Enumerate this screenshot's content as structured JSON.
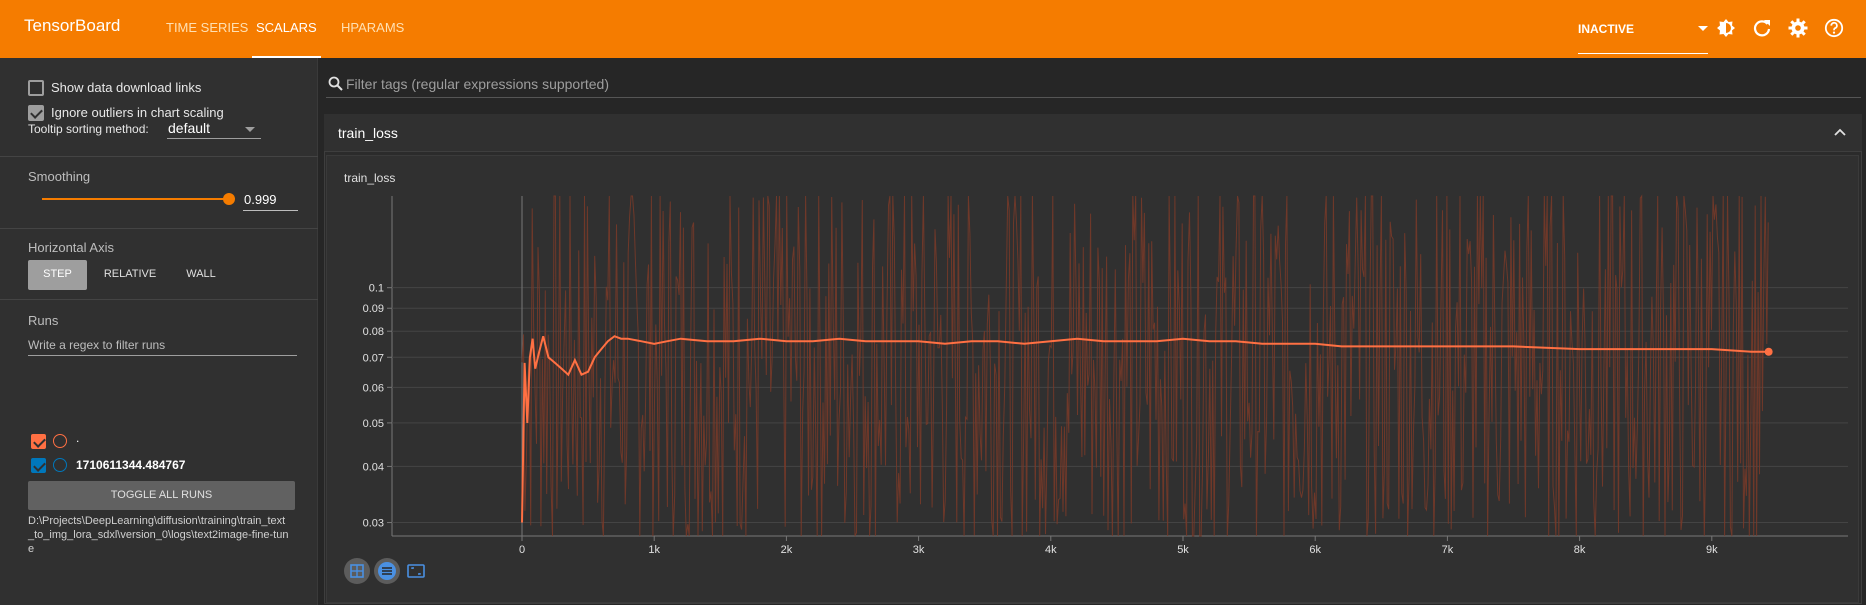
{
  "app": {
    "title": "TensorBoard",
    "tabs": [
      {
        "label": "TIME SERIES",
        "active": false
      },
      {
        "label": "SCALARS",
        "active": true
      },
      {
        "label": "HPARAMS",
        "active": false
      }
    ],
    "status_select": "INACTIVE",
    "icons": [
      "brightness-icon",
      "refresh-icon",
      "settings-icon",
      "help-icon"
    ]
  },
  "sidebar": {
    "show_download_links": {
      "label": "Show data download links",
      "checked": false
    },
    "ignore_outliers": {
      "label": "Ignore outliers in chart scaling",
      "checked": true
    },
    "tooltip_sort": {
      "label": "Tooltip sorting method:",
      "value": "default"
    },
    "smoothing": {
      "label": "Smoothing",
      "value": "0.999",
      "fraction": 0.999
    },
    "horizontal_axis": {
      "label": "Horizontal Axis",
      "options": [
        "STEP",
        "RELATIVE",
        "WALL"
      ],
      "selected": "STEP"
    },
    "runs": {
      "label": "Runs",
      "filter_placeholder": "Write a regex to filter runs",
      "items": [
        {
          "name": ".",
          "checked": true,
          "color": "#ff7043"
        },
        {
          "name": "1710611344.484767",
          "checked": true,
          "color": "#0077bb"
        }
      ],
      "toggle_label": "TOGGLE ALL RUNS",
      "logdir": "D:\\Projects\\DeepLearning\\diffusion\\training\\train_text_to_img_lora_sdxl\\version_0\\logs\\text2image-fine-tune"
    }
  },
  "main": {
    "filter_placeholder": "Filter tags (regular expressions supported)",
    "group_name": "train_loss",
    "card_title": "train_loss"
  },
  "colors": {
    "accent": "#f57c00",
    "series_smoothed": "#ff7043",
    "series_raw": "#7a3a28"
  },
  "chart_data": {
    "type": "line",
    "title": "train_loss",
    "xlabel": "",
    "ylabel": "",
    "yscale": "log",
    "xlim": [
      -1000,
      10000
    ],
    "ylim": [
      0.028,
      0.16
    ],
    "x_ticks": [
      "0",
      "1k",
      "2k",
      "3k",
      "4k",
      "5k",
      "6k",
      "7k",
      "8k",
      "9k"
    ],
    "x_tick_values": [
      0,
      1000,
      2000,
      3000,
      4000,
      5000,
      6000,
      7000,
      8000,
      9000
    ],
    "y_ticks": [
      "0.03",
      "0.04",
      "0.05",
      "0.06",
      "0.07",
      "0.08",
      "0.09",
      "0.1"
    ],
    "y_tick_values": [
      0.03,
      0.04,
      0.05,
      0.06,
      0.07,
      0.08,
      0.09,
      0.1
    ],
    "grid": true,
    "series": [
      {
        "role": "smoothed",
        "x": [
          0,
          20,
          40,
          60,
          80,
          100,
          130,
          160,
          200,
          250,
          300,
          350,
          400,
          450,
          500,
          550,
          600,
          650,
          700,
          750,
          800,
          900,
          1000,
          1100,
          1200,
          1400,
          1600,
          1800,
          2000,
          2200,
          2400,
          2600,
          2800,
          3000,
          3200,
          3400,
          3600,
          3800,
          4000,
          4200,
          4400,
          4600,
          4800,
          5000,
          5200,
          5400,
          5600,
          5800,
          6000,
          6200,
          6500,
          7000,
          7500,
          8000,
          8500,
          9000,
          9300,
          9430
        ],
        "y": [
          0.03,
          0.068,
          0.05,
          0.07,
          0.077,
          0.066,
          0.072,
          0.078,
          0.07,
          0.068,
          0.066,
          0.064,
          0.069,
          0.064,
          0.065,
          0.07,
          0.073,
          0.076,
          0.078,
          0.077,
          0.077,
          0.076,
          0.075,
          0.076,
          0.077,
          0.076,
          0.076,
          0.077,
          0.076,
          0.076,
          0.077,
          0.076,
          0.076,
          0.076,
          0.075,
          0.076,
          0.076,
          0.075,
          0.076,
          0.077,
          0.076,
          0.076,
          0.076,
          0.077,
          0.076,
          0.076,
          0.075,
          0.075,
          0.075,
          0.074,
          0.074,
          0.074,
          0.074,
          0.073,
          0.073,
          0.073,
          0.072,
          0.072
        ]
      }
    ],
    "raw_series_visible": true
  }
}
